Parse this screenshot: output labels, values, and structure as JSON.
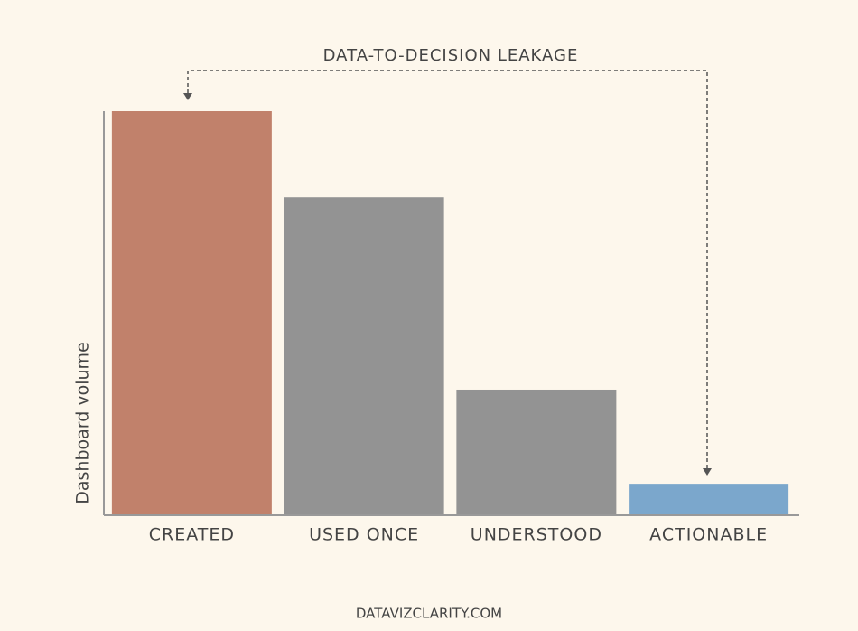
{
  "chart_data": {
    "type": "bar",
    "annotation": "DATA-TO-DECISION LEAKAGE",
    "ylabel": "Dashboard volume",
    "source": "DATAVIZCLARITY.COM",
    "categories": [
      "CREATED",
      "USED ONCE",
      "UNDERSTOOD",
      "ACTIONABLE"
    ],
    "values": [
      100,
      78.7,
      31.1,
      7.8
    ],
    "colors": [
      "#c1816b",
      "#939393",
      "#939393",
      "#7ba7cc"
    ],
    "ylim": [
      0,
      100
    ]
  }
}
